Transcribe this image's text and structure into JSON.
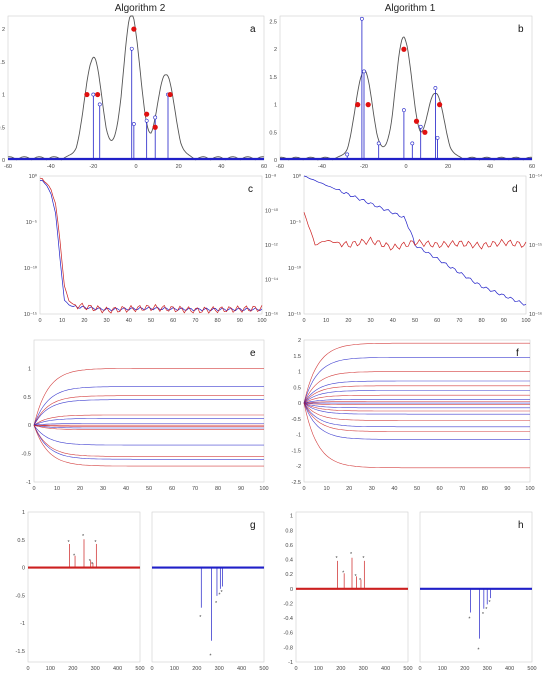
{
  "titles": {
    "left": "Algorithm 2",
    "right": "Algorithm 1"
  },
  "colors": {
    "blue": "#2020c8",
    "red": "#cc2020",
    "gray": "#555555",
    "dot_red": "#e01010",
    "teal_tick": "#1a8a8a",
    "orange_tick": "#c05010"
  },
  "chart_data": [
    {
      "panel": "a",
      "type": "line",
      "xlim": [
        -60,
        60
      ],
      "ylim": [
        0,
        2.2
      ],
      "xticks": [
        "-60",
        "-40",
        "-20",
        "0",
        "20",
        "40",
        "60"
      ],
      "yticks": [
        "0",
        "0.5",
        "1",
        "1.5",
        "2"
      ],
      "spectrum_peaks": [
        {
          "x": -20,
          "y": 1.55
        },
        {
          "x": -2,
          "y": 2.2
        },
        {
          "x": 14,
          "y": 1.3
        }
      ],
      "stems": [
        {
          "x": -20,
          "y": 1.0
        },
        {
          "x": -17,
          "y": 0.85
        },
        {
          "x": -2,
          "y": 1.7
        },
        {
          "x": -1,
          "y": 0.55
        },
        {
          "x": 5,
          "y": 0.6
        },
        {
          "x": 9,
          "y": 0.65
        },
        {
          "x": 15,
          "y": 1.0
        }
      ],
      "true_points": [
        {
          "x": -23,
          "y": 1.0
        },
        {
          "x": -18,
          "y": 1.0
        },
        {
          "x": -1,
          "y": 2.0
        },
        {
          "x": 5,
          "y": 0.7
        },
        {
          "x": 9,
          "y": 0.5
        },
        {
          "x": 16,
          "y": 1.0
        }
      ]
    },
    {
      "panel": "b",
      "type": "line",
      "xlim": [
        -60,
        60
      ],
      "ylim": [
        0,
        2.6
      ],
      "xticks": [
        "-60",
        "-40",
        "-20",
        "0",
        "20",
        "40",
        "60"
      ],
      "yticks": [
        "0",
        "0.5",
        "1",
        "1.5",
        "2",
        "2.5"
      ],
      "spectrum_peaks": [
        {
          "x": -20,
          "y": 1.6
        },
        {
          "x": -1,
          "y": 2.2
        },
        {
          "x": 14,
          "y": 1.2
        }
      ],
      "stems": [
        {
          "x": -28,
          "y": 0.1
        },
        {
          "x": -21,
          "y": 2.55
        },
        {
          "x": -20,
          "y": 1.6
        },
        {
          "x": -13,
          "y": 0.3
        },
        {
          "x": -1,
          "y": 0.9
        },
        {
          "x": 3,
          "y": 0.3
        },
        {
          "x": 7,
          "y": 0.6
        },
        {
          "x": 14,
          "y": 1.3
        },
        {
          "x": 15,
          "y": 0.4
        }
      ],
      "true_points": [
        {
          "x": -23,
          "y": 1.0
        },
        {
          "x": -18,
          "y": 1.0
        },
        {
          "x": -1,
          "y": 2.0
        },
        {
          "x": 5,
          "y": 0.7
        },
        {
          "x": 9,
          "y": 0.5
        },
        {
          "x": 16,
          "y": 1.0
        }
      ]
    },
    {
      "panel": "c",
      "type": "line",
      "yscale": "log",
      "xlim": [
        0,
        100
      ],
      "xticks": [
        "0",
        "10",
        "20",
        "30",
        "40",
        "50",
        "60",
        "70",
        "80",
        "90",
        "100"
      ],
      "left_yticks": [
        "10⁰",
        "10⁻⁵",
        "10⁻¹⁰",
        "10⁻¹⁵"
      ],
      "right_yticks": [
        "10⁻⁸",
        "10⁻¹⁰",
        "10⁻¹²",
        "10⁻¹⁴",
        "10⁻¹⁶"
      ],
      "series": [
        {
          "color": "blue",
          "x": [
            1,
            3,
            5,
            7,
            9,
            11,
            13,
            15,
            20,
            30,
            50,
            70,
            100
          ],
          "y": [
            -0.5,
            -1,
            -2,
            -4,
            -9,
            -13.5,
            -14,
            -14.2,
            -14.3,
            -14.5,
            -14.4,
            -14.5,
            -14.5
          ]
        },
        {
          "color": "red",
          "x": [
            1,
            3,
            5,
            7,
            9,
            11,
            13,
            15,
            20,
            30,
            50,
            70,
            100
          ],
          "y": [
            -0.3,
            -0.8,
            -1.5,
            -3,
            -7,
            -12,
            -13.5,
            -14,
            -14.2,
            -14.6,
            -14.3,
            -14.6,
            -14.4
          ]
        }
      ]
    },
    {
      "panel": "d",
      "type": "line",
      "yscale": "log",
      "xlim": [
        0,
        100
      ],
      "xticks": [
        "0",
        "10",
        "20",
        "30",
        "40",
        "50",
        "60",
        "70",
        "80",
        "90",
        "100"
      ],
      "left_yticks": [
        "10⁰",
        "10⁻⁵",
        "10⁻¹⁰",
        "10⁻¹⁵"
      ],
      "right_yticks": [
        "10⁻¹⁴",
        "10⁻¹⁵",
        "10⁻¹⁶"
      ],
      "series": [
        {
          "color": "blue",
          "x": [
            0,
            10,
            20,
            30,
            40,
            45,
            48,
            50,
            60,
            70,
            80,
            90,
            100
          ],
          "y": [
            0,
            -1,
            -2,
            -3,
            -4,
            -4.5,
            -6,
            -7.5,
            -9,
            -10.5,
            -12,
            -13,
            -14
          ]
        },
        {
          "color": "red",
          "x": [
            0,
            3,
            5,
            10,
            20,
            30,
            40,
            50,
            60,
            70,
            80,
            90,
            100
          ],
          "y": [
            -4,
            -6,
            -7.5,
            -7,
            -7.5,
            -7,
            -7.8,
            -7.2,
            -7.5,
            -7.3,
            -7.6,
            -7.2,
            -7.5
          ]
        }
      ]
    },
    {
      "panel": "e",
      "type": "line",
      "xlim": [
        0,
        100
      ],
      "ylim": [
        -1,
        1.5
      ],
      "xticks": [
        "0",
        "10",
        "20",
        "30",
        "40",
        "50",
        "60",
        "70",
        "80",
        "90",
        "100"
      ],
      "yticks": [
        "-1",
        "-0.5",
        "0",
        "0.5",
        "1"
      ],
      "final_values": [
        1.0,
        0.68,
        0.52,
        0.45,
        0.18,
        0.12,
        0.0,
        -0.05,
        -0.08,
        -0.35,
        -0.55,
        -0.6,
        -0.72,
        0.03,
        -0.02
      ]
    },
    {
      "panel": "f",
      "type": "line",
      "xlim": [
        0,
        100
      ],
      "ylim": [
        -2.5,
        2
      ],
      "xticks": [
        "0",
        "10",
        "20",
        "30",
        "40",
        "50",
        "60",
        "70",
        "80",
        "90",
        "100"
      ],
      "yticks": [
        "-2.5",
        "-2",
        "-1.5",
        "-1",
        "-0.5",
        "0",
        "0.5",
        "1",
        "1.5",
        "2"
      ],
      "final_values": [
        1.9,
        1.45,
        1.0,
        0.7,
        0.55,
        0.4,
        0.25,
        0.12,
        0.05,
        0.0,
        -0.05,
        -0.15,
        -0.25,
        -0.35,
        -0.55,
        -0.75,
        -0.9,
        -1.15,
        -2.05
      ]
    },
    {
      "panel": "g",
      "type": "scatter",
      "xlim": [
        0,
        500
      ],
      "ylim": [
        -1.7,
        1.0
      ],
      "xticks": [
        "0",
        "100",
        "200",
        "300",
        "400",
        "500"
      ],
      "yticks": [
        "-1.5",
        "-1",
        "-0.5",
        "0",
        "0.5",
        "1"
      ],
      "left_stars": [
        {
          "x": 185,
          "y": 0.5
        },
        {
          "x": 210,
          "y": 0.25
        },
        {
          "x": 250,
          "y": 0.6
        },
        {
          "x": 280,
          "y": 0.15
        },
        {
          "x": 290,
          "y": 0.1
        },
        {
          "x": 305,
          "y": 0.5
        }
      ],
      "right_stars": [
        {
          "x": 220,
          "y": -0.85
        },
        {
          "x": 265,
          "y": -1.55
        },
        {
          "x": 290,
          "y": -0.6
        },
        {
          "x": 305,
          "y": -0.45
        },
        {
          "x": 315,
          "y": -0.4
        }
      ]
    },
    {
      "panel": "h",
      "type": "scatter",
      "xlim": [
        0,
        500
      ],
      "ylim": [
        -1.0,
        1.05
      ],
      "xticks": [
        "0",
        "100",
        "200",
        "300",
        "400",
        "500"
      ],
      "yticks": [
        "-1",
        "-0.8",
        "-0.6",
        "-0.4",
        "-0.2",
        "0",
        "0.2",
        "0.4",
        "0.6",
        "0.8",
        "1"
      ],
      "left_stars": [
        {
          "x": 185,
          "y": 0.45
        },
        {
          "x": 215,
          "y": 0.25
        },
        {
          "x": 250,
          "y": 0.5
        },
        {
          "x": 270,
          "y": 0.2
        },
        {
          "x": 290,
          "y": 0.15
        },
        {
          "x": 305,
          "y": 0.45
        }
      ],
      "right_stars": [
        {
          "x": 225,
          "y": -0.38
        },
        {
          "x": 265,
          "y": -0.8
        },
        {
          "x": 285,
          "y": -0.32
        },
        {
          "x": 300,
          "y": -0.25
        },
        {
          "x": 315,
          "y": -0.15
        }
      ]
    }
  ]
}
